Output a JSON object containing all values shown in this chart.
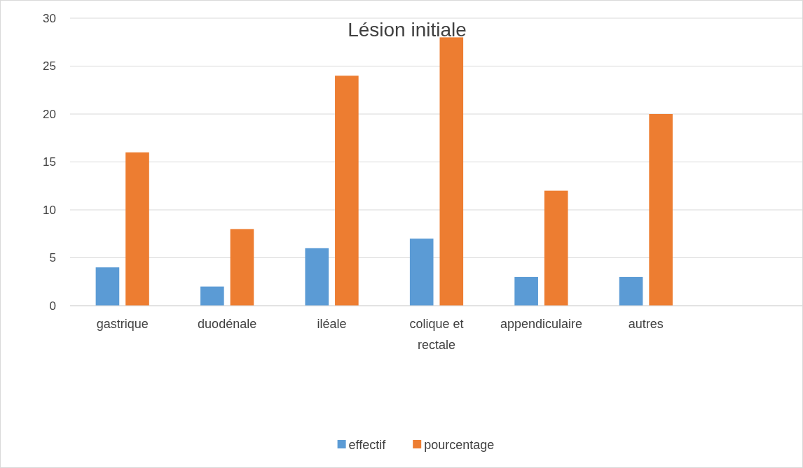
{
  "chart_data": {
    "type": "bar",
    "title": "Lésion initiale",
    "categories": [
      "gastrique",
      "duodénale",
      "iléale",
      "colique et rectale",
      "appendiculaire",
      "autres",
      null
    ],
    "series": [
      {
        "name": "effectif",
        "color": "#5b9bd5",
        "values": [
          4,
          2,
          6,
          7,
          3,
          3,
          null
        ]
      },
      {
        "name": "pourcentage",
        "color": "#ed7d31",
        "values": [
          16,
          8,
          24,
          28,
          12,
          20,
          null
        ]
      }
    ],
    "ylim": [
      0,
      30
    ],
    "yticks": [
      0,
      5,
      10,
      15,
      20,
      25,
      30
    ],
    "grid": "y",
    "legend": "bottom"
  }
}
